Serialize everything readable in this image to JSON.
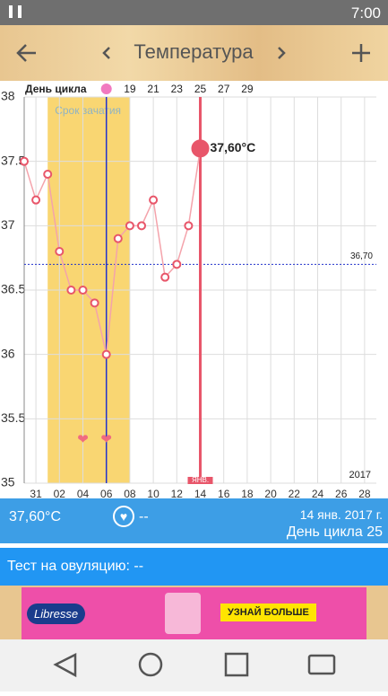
{
  "status_bar": {
    "time": "7:00"
  },
  "toolbar": {
    "title": "Температура"
  },
  "chart_data": {
    "type": "line",
    "row_label": "День цикла",
    "categories": [
      null,
      "31",
      null,
      "02",
      null,
      "04",
      null,
      "06",
      null,
      "08",
      null,
      "10",
      null,
      "12",
      null,
      "14",
      null,
      "16",
      null,
      "18",
      null,
      "20",
      null,
      "22",
      null,
      "24",
      null,
      "26",
      null,
      "28"
    ],
    "cycle_days": [
      null,
      null,
      null,
      null,
      null,
      null,
      null,
      null,
      null,
      "19",
      null,
      "21",
      null,
      "23",
      null,
      "25",
      null,
      "27",
      null,
      "29",
      null,
      null,
      null,
      null,
      null,
      null,
      null,
      null,
      null,
      null
    ],
    "series": [
      {
        "name": "Температура",
        "color": "#f4a3ab",
        "marker_color": "#e8566a",
        "values": [
          37.5,
          37.2,
          37.4,
          36.8,
          36.5,
          36.5,
          36.4,
          36.0,
          36.9,
          37.0,
          37.0,
          37.2,
          36.6,
          36.7,
          37.0,
          37.6,
          null,
          null,
          null,
          null,
          null,
          null,
          null,
          null,
          null,
          null,
          null,
          null,
          null,
          null
        ],
        "value_labels": [
          null,
          null,
          null,
          null,
          null,
          null,
          null,
          null,
          null,
          null,
          null,
          null,
          null,
          null,
          null,
          "37,60°C",
          null,
          null,
          null,
          null,
          null,
          null,
          null,
          null,
          null,
          null,
          null,
          null,
          null,
          null
        ]
      }
    ],
    "ylim": [
      35,
      38
    ],
    "yticks": [
      35,
      35.5,
      36,
      36.5,
      37,
      37.5,
      38
    ],
    "coverline": {
      "value": 36.7,
      "label": "36,70"
    },
    "fertile_window": {
      "label": "Срок зачатия",
      "start_index": 2,
      "end_index": 9
    },
    "ovulation_index": 7,
    "heart_indices": [
      5,
      7
    ],
    "current_index": 15,
    "month_label": "ЯНВ.",
    "year_label": "2017",
    "grid": true
  },
  "info_bar": {
    "temperature": "37,60°C",
    "test": "--",
    "date": "14 янв. 2017 г.",
    "cycle_day": "День цикла 25"
  },
  "ovulation_test": {
    "text": "Тест на овуляцию: --"
  },
  "ad": {
    "brand": "Libresse",
    "button": "УЗНАЙ БОЛЬШЕ"
  }
}
